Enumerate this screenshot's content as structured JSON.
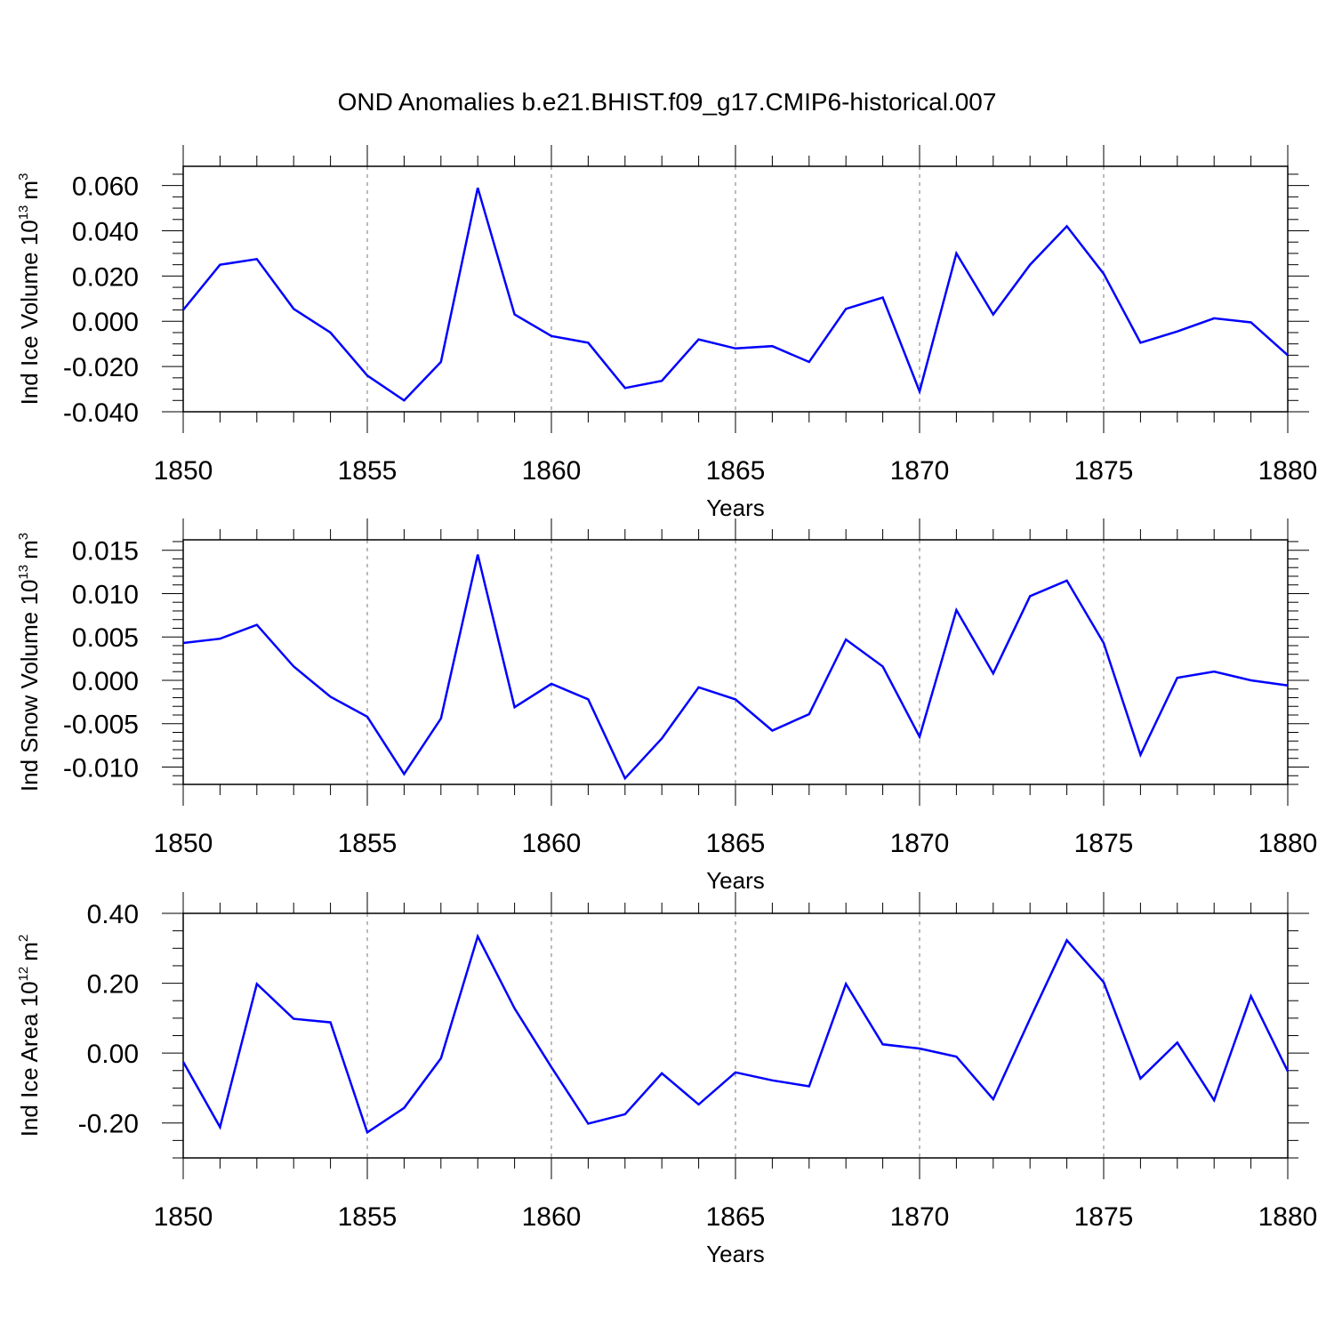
{
  "title": "OND Anomalies b.e21.BHIST.f09_g17.CMIP6-historical.007",
  "colors": {
    "line": "#0000ff",
    "axis": "#000000",
    "grid": "#777777"
  },
  "chart_data": [
    {
      "type": "line",
      "ylabel_main": "Ind Ice Volume 10",
      "ylabel_exp": "13",
      "ylabel_unit": "m",
      "ylabel_unit_exp": "3",
      "xlabel": "Years",
      "xlim": [
        1850,
        1880
      ],
      "ylim": [
        -0.04,
        0.0685
      ],
      "x_ticks": [
        1850,
        1855,
        1860,
        1865,
        1870,
        1875,
        1880
      ],
      "y_ticks": [
        -0.04,
        -0.02,
        0.0,
        0.02,
        0.04,
        0.06
      ],
      "y_tick_labels": [
        "-0.040",
        "-0.020",
        "0.000",
        "0.020",
        "0.040",
        "0.060"
      ],
      "y_minor_step": 0.005,
      "x": [
        1850,
        1851,
        1852,
        1853,
        1854,
        1855,
        1856,
        1857,
        1858,
        1859,
        1860,
        1861,
        1862,
        1863,
        1864,
        1865,
        1866,
        1867,
        1868,
        1869,
        1870,
        1871,
        1872,
        1873,
        1874,
        1875,
        1876,
        1877,
        1878,
        1879,
        1880
      ],
      "values": [
        0.005,
        0.025,
        0.0275,
        0.0055,
        -0.005,
        -0.024,
        -0.035,
        -0.018,
        0.059,
        0.003,
        -0.0065,
        -0.0095,
        -0.0295,
        -0.0263,
        -0.008,
        -0.012,
        -0.011,
        -0.018,
        0.0055,
        0.0105,
        -0.031,
        0.03,
        0.003,
        0.025,
        0.042,
        0.021,
        -0.0095,
        -0.0045,
        0.0013,
        -0.0005,
        -0.015
      ]
    },
    {
      "type": "line",
      "ylabel_main": "Ind Snow Volume 10",
      "ylabel_exp": "13",
      "ylabel_unit": "m",
      "ylabel_unit_exp": "3",
      "xlabel": "Years",
      "xlim": [
        1850,
        1880
      ],
      "ylim": [
        -0.012,
        0.0162
      ],
      "x_ticks": [
        1850,
        1855,
        1860,
        1865,
        1870,
        1875,
        1880
      ],
      "y_ticks": [
        -0.01,
        -0.005,
        0.0,
        0.005,
        0.01,
        0.015
      ],
      "y_tick_labels": [
        "-0.010",
        "-0.005",
        "0.000",
        "0.005",
        "0.010",
        "0.015"
      ],
      "y_minor_step": 0.001,
      "x": [
        1850,
        1851,
        1852,
        1853,
        1854,
        1855,
        1856,
        1857,
        1858,
        1859,
        1860,
        1861,
        1862,
        1863,
        1864,
        1865,
        1866,
        1867,
        1868,
        1869,
        1870,
        1871,
        1872,
        1873,
        1874,
        1875,
        1876,
        1877,
        1878,
        1879,
        1880
      ],
      "values": [
        0.0043,
        0.0048,
        0.0064,
        0.0016,
        -0.0019,
        -0.0042,
        -0.0108,
        -0.0044,
        0.0145,
        -0.0031,
        -0.0004,
        -0.0022,
        -0.0113,
        -0.0067,
        -0.0008,
        -0.0022,
        -0.0058,
        -0.0039,
        0.0047,
        0.0016,
        -0.0065,
        0.0081,
        0.0008,
        0.0097,
        0.0115,
        0.0043,
        -0.0086,
        0.0003,
        0.001,
        0.0,
        -0.0006
      ]
    },
    {
      "type": "line",
      "ylabel_main": "Ind Ice Area 10",
      "ylabel_exp": "12",
      "ylabel_unit": "m",
      "ylabel_unit_exp": "2",
      "xlabel": "Years",
      "xlim": [
        1850,
        1880
      ],
      "ylim": [
        -0.3,
        0.4
      ],
      "x_ticks": [
        1850,
        1855,
        1860,
        1865,
        1870,
        1875,
        1880
      ],
      "y_ticks": [
        -0.2,
        0.0,
        0.2,
        0.4
      ],
      "y_tick_labels": [
        "-0.20",
        "0.00",
        "0.20",
        "0.40"
      ],
      "y_minor_step": 0.05,
      "x": [
        1850,
        1851,
        1852,
        1853,
        1854,
        1855,
        1856,
        1857,
        1858,
        1859,
        1860,
        1861,
        1862,
        1863,
        1864,
        1865,
        1866,
        1867,
        1868,
        1869,
        1870,
        1871,
        1872,
        1873,
        1874,
        1875,
        1876,
        1877,
        1878,
        1879,
        1880
      ],
      "values": [
        -0.025,
        -0.212,
        0.198,
        0.098,
        0.088,
        -0.227,
        -0.157,
        -0.015,
        0.334,
        0.128,
        -0.04,
        -0.202,
        -0.175,
        -0.058,
        -0.147,
        -0.055,
        -0.078,
        -0.095,
        0.198,
        0.025,
        0.013,
        -0.01,
        -0.132,
        0.098,
        0.323,
        0.203,
        -0.073,
        0.03,
        -0.135,
        0.163,
        -0.052
      ]
    }
  ]
}
